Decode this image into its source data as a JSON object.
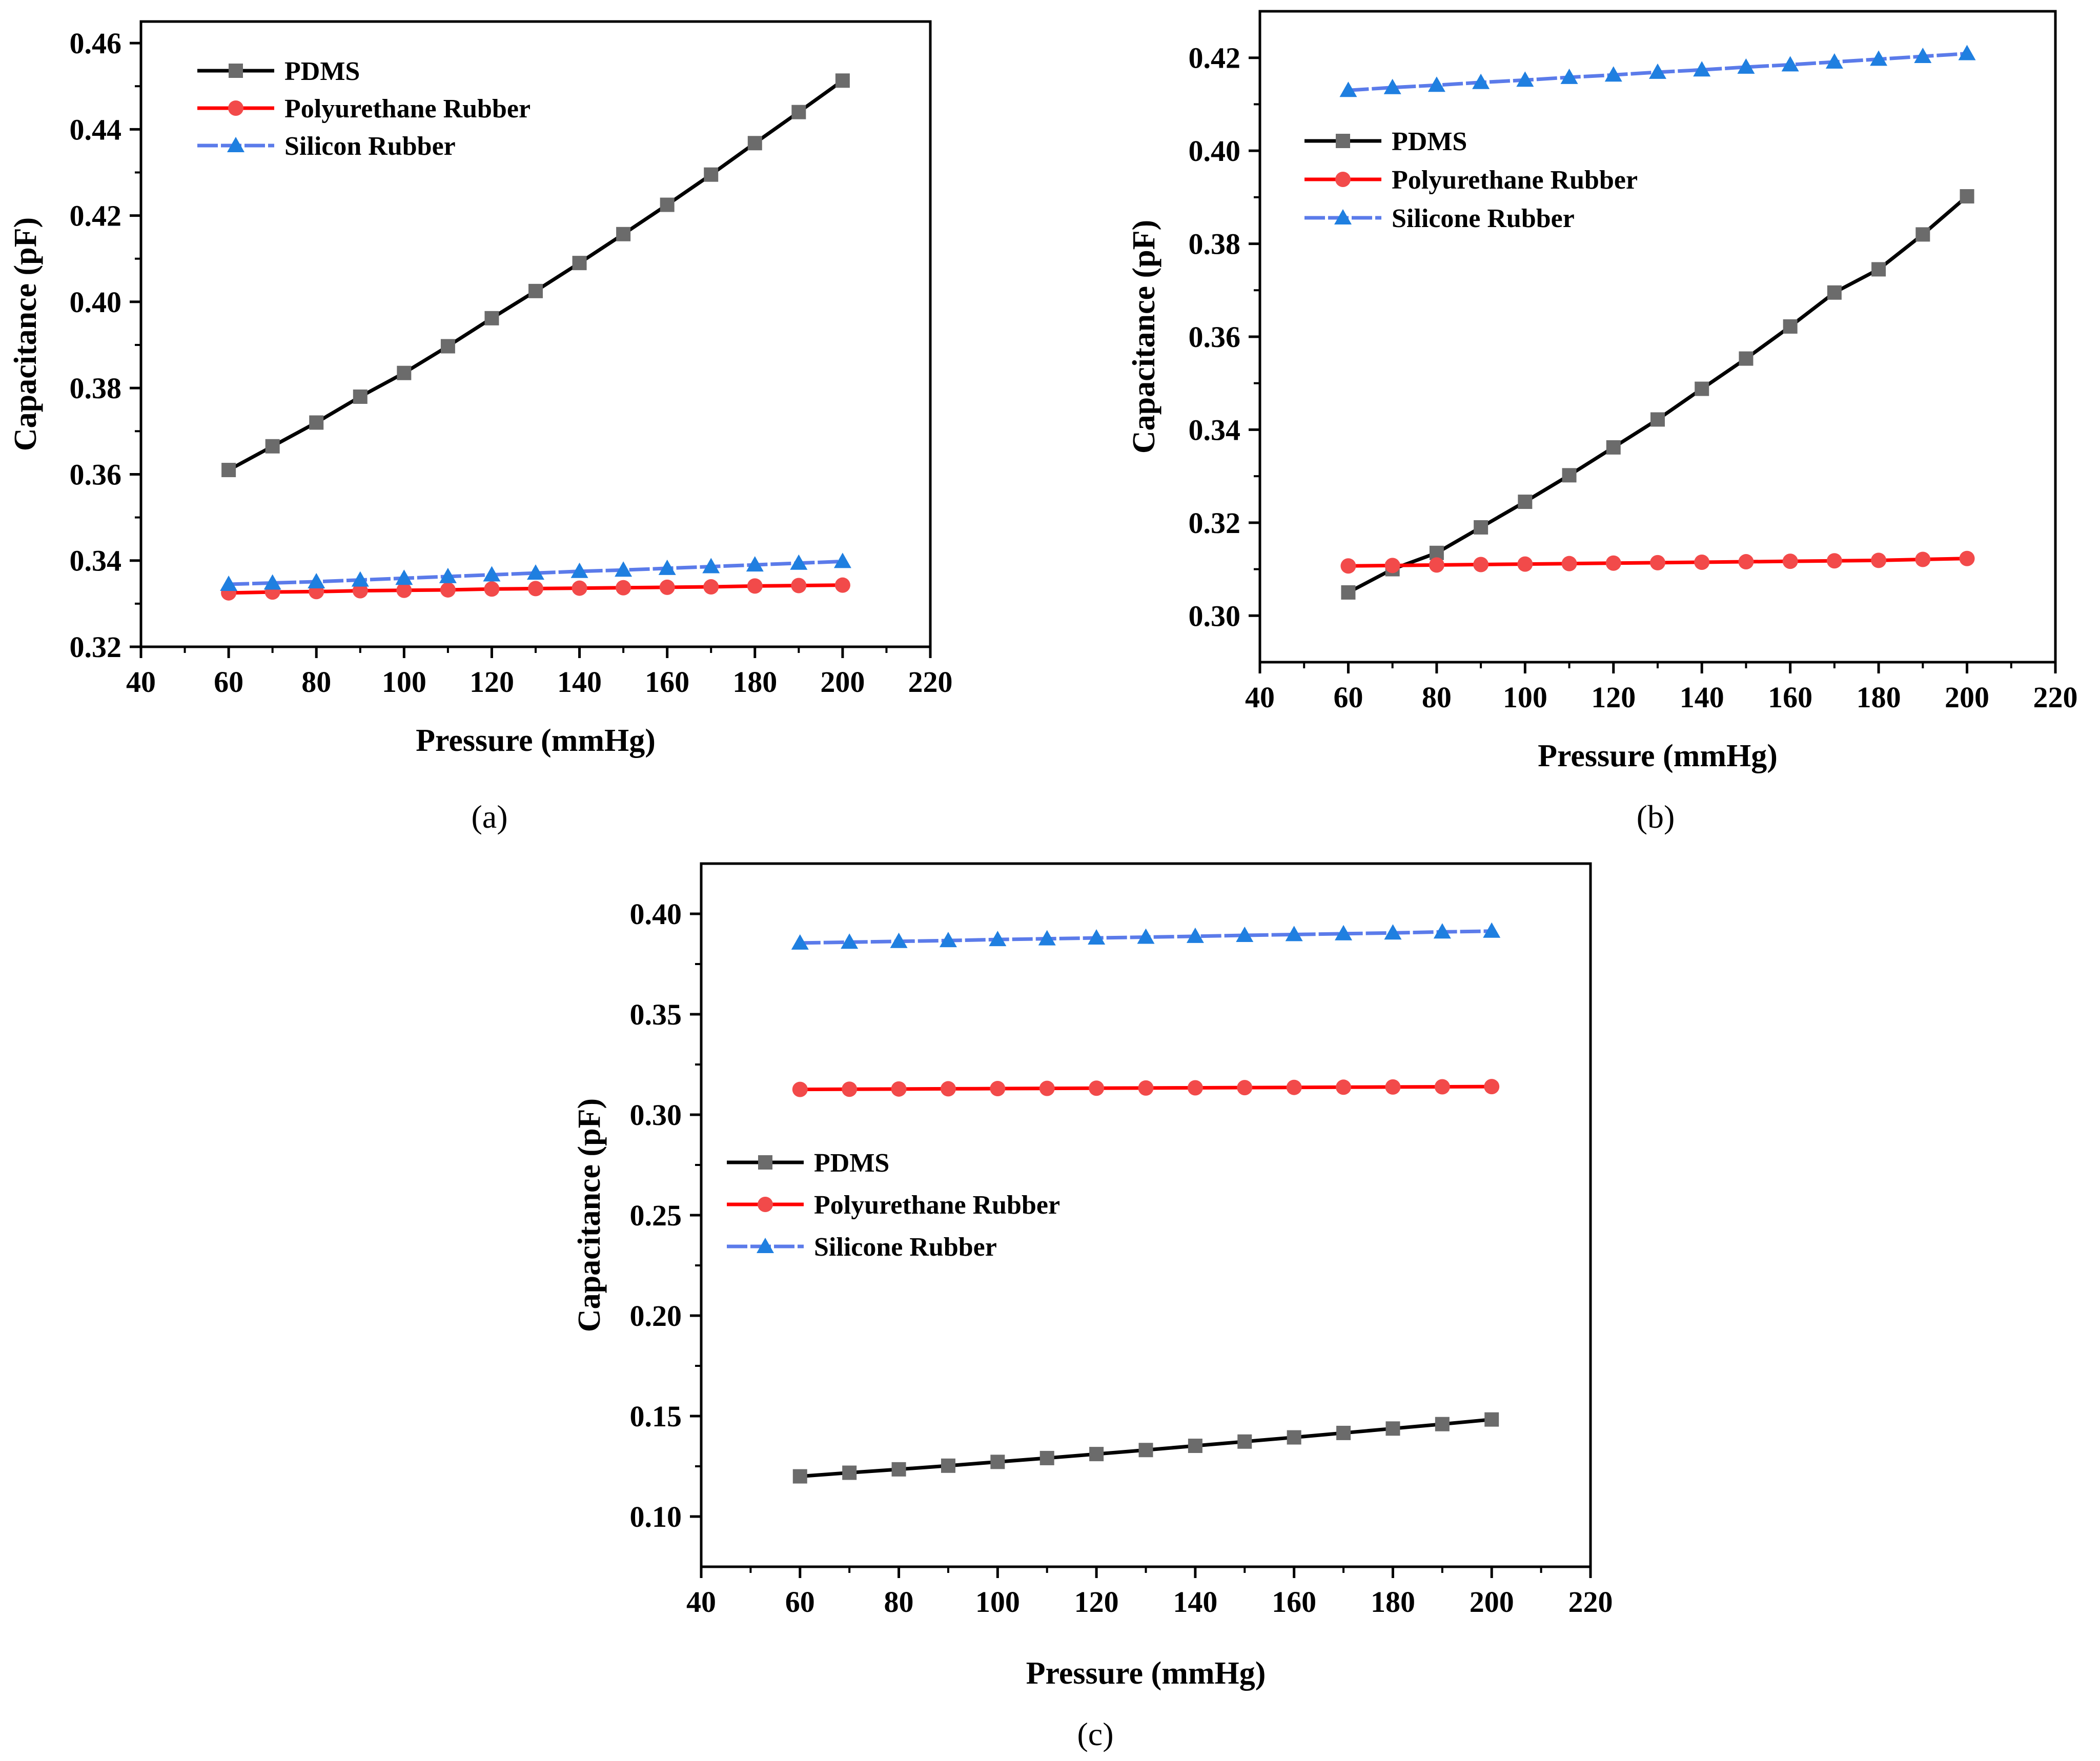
{
  "figure": {
    "panels": [
      "a",
      "b",
      "c"
    ]
  },
  "chart_data": [
    {
      "panel": "a",
      "caption": "(a)",
      "type": "line",
      "title": "",
      "xlabel": "Pressure (mmHg)",
      "ylabel": "Capacitance (pF)",
      "xlim": [
        40,
        220
      ],
      "ylim": [
        0.32,
        0.465
      ],
      "xticks": [
        40,
        60,
        80,
        100,
        120,
        140,
        160,
        180,
        200,
        220
      ],
      "xtick_labels": [
        "40",
        "60",
        "80",
        "100",
        "120",
        "140",
        "160",
        "180",
        "200",
        "220"
      ],
      "yticks": [
        0.32,
        0.34,
        0.36,
        0.38,
        0.4,
        0.42,
        0.44,
        0.46
      ],
      "ytick_labels": [
        "0.32",
        "0.34",
        "0.36",
        "0.38",
        "0.40",
        "0.42",
        "0.44",
        "0.46"
      ],
      "legend_position": "top-left",
      "x": [
        60,
        70,
        80,
        90,
        100,
        110,
        120,
        130,
        140,
        150,
        160,
        170,
        180,
        190,
        200
      ],
      "series": [
        {
          "name": "PDMS",
          "marker": "square",
          "line_color": "#000000",
          "marker_color": "#6b6b6b",
          "values": [
            0.361,
            0.3665,
            0.372,
            0.378,
            0.3835,
            0.3897,
            0.3962,
            0.4025,
            0.409,
            0.4157,
            0.4225,
            0.4295,
            0.4368,
            0.444,
            0.4513
          ]
        },
        {
          "name": "Polyurethane Rubber",
          "marker": "circle",
          "line_color": "#ff0000",
          "marker_color": "#f24a4a",
          "values": [
            0.3325,
            0.3327,
            0.3328,
            0.333,
            0.3331,
            0.3332,
            0.3334,
            0.3335,
            0.3336,
            0.3337,
            0.3338,
            0.3339,
            0.3341,
            0.3342,
            0.3343
          ]
        },
        {
          "name": "Silicon Rubber",
          "marker": "triangle",
          "line_color": "#5b7bea",
          "marker_color": "#1f7fe0",
          "values": [
            0.3345,
            0.3348,
            0.3351,
            0.3355,
            0.3359,
            0.3363,
            0.3367,
            0.3371,
            0.3375,
            0.3378,
            0.3382,
            0.3386,
            0.339,
            0.3394,
            0.3398
          ]
        }
      ]
    },
    {
      "panel": "b",
      "caption": "(b)",
      "type": "line",
      "title": "",
      "xlabel": "Pressure (mmHg)",
      "ylabel": "Capacitance (pF)",
      "xlim": [
        40,
        220
      ],
      "ylim": [
        0.29,
        0.43
      ],
      "xticks": [
        40,
        60,
        80,
        100,
        120,
        140,
        160,
        180,
        200,
        220
      ],
      "xtick_labels": [
        "40",
        "60",
        "80",
        "100",
        "120",
        "140",
        "160",
        "180",
        "200",
        "220"
      ],
      "yticks": [
        0.3,
        0.32,
        0.34,
        0.36,
        0.38,
        0.4,
        0.42
      ],
      "ytick_labels": [
        "0.30",
        "0.32",
        "0.34",
        "0.36",
        "0.38",
        "0.40",
        "0.42"
      ],
      "legend_position": "upper-left",
      "x": [
        60,
        70,
        80,
        90,
        100,
        110,
        120,
        130,
        140,
        150,
        160,
        170,
        180,
        190,
        200
      ],
      "series": [
        {
          "name": "PDMS",
          "marker": "square",
          "line_color": "#000000",
          "marker_color": "#6b6b6b",
          "values": [
            0.305,
            0.31,
            0.3135,
            0.319,
            0.3245,
            0.3302,
            0.3362,
            0.3422,
            0.3488,
            0.3553,
            0.3622,
            0.3695,
            0.3745,
            0.382,
            0.3902
          ]
        },
        {
          "name": "Polyurethane Rubber",
          "marker": "circle",
          "line_color": "#ff0000",
          "marker_color": "#f24a4a",
          "values": [
            0.3107,
            0.3108,
            0.3109,
            0.311,
            0.3111,
            0.3112,
            0.3113,
            0.3114,
            0.3115,
            0.3116,
            0.3117,
            0.3118,
            0.3119,
            0.3121,
            0.3123
          ]
        },
        {
          "name": "Silicone Rubber",
          "marker": "triangle",
          "line_color": "#5b7bea",
          "marker_color": "#1f7fe0",
          "values": [
            0.413,
            0.4136,
            0.4141,
            0.4147,
            0.4152,
            0.4158,
            0.4163,
            0.4169,
            0.4174,
            0.418,
            0.4185,
            0.4191,
            0.4197,
            0.4203,
            0.4209
          ]
        }
      ]
    },
    {
      "panel": "c",
      "caption": "(c)",
      "type": "line",
      "title": "",
      "xlabel": "Pressure (mmHg)",
      "ylabel": "Capacitance (pF)",
      "xlim": [
        40,
        220
      ],
      "ylim": [
        0.075,
        0.425
      ],
      "xticks": [
        40,
        60,
        80,
        100,
        120,
        140,
        160,
        180,
        200,
        220
      ],
      "xtick_labels": [
        "40",
        "60",
        "80",
        "100",
        "120",
        "140",
        "160",
        "180",
        "200",
        "220"
      ],
      "yticks": [
        0.1,
        0.15,
        0.2,
        0.25,
        0.3,
        0.35,
        0.4
      ],
      "ytick_labels": [
        "0.10",
        "0.15",
        "0.20",
        "0.25",
        "0.30",
        "0.35",
        "0.40"
      ],
      "legend_position": "middle-left",
      "x": [
        60,
        70,
        80,
        90,
        100,
        110,
        120,
        130,
        140,
        150,
        160,
        170,
        180,
        190,
        200
      ],
      "series": [
        {
          "name": "PDMS",
          "marker": "square",
          "line_color": "#000000",
          "marker_color": "#6b6b6b",
          "values": [
            0.12,
            0.1218,
            0.1235,
            0.1253,
            0.1272,
            0.1291,
            0.1311,
            0.1331,
            0.1352,
            0.1373,
            0.1394,
            0.1416,
            0.1438,
            0.146,
            0.1483
          ]
        },
        {
          "name": "Polyurethane Rubber",
          "marker": "circle",
          "line_color": "#ff0000",
          "marker_color": "#f24a4a",
          "values": [
            0.3126,
            0.3127,
            0.3128,
            0.3129,
            0.313,
            0.3131,
            0.3132,
            0.3133,
            0.3134,
            0.3135,
            0.3136,
            0.3137,
            0.3138,
            0.3139,
            0.314
          ]
        },
        {
          "name": "Silicone Rubber",
          "marker": "triangle",
          "line_color": "#5b7bea",
          "marker_color": "#1f7fe0",
          "values": [
            0.3855,
            0.3859,
            0.3863,
            0.3867,
            0.3872,
            0.3876,
            0.388,
            0.3884,
            0.3888,
            0.3893,
            0.3897,
            0.3901,
            0.3905,
            0.391,
            0.3914
          ]
        }
      ]
    }
  ]
}
